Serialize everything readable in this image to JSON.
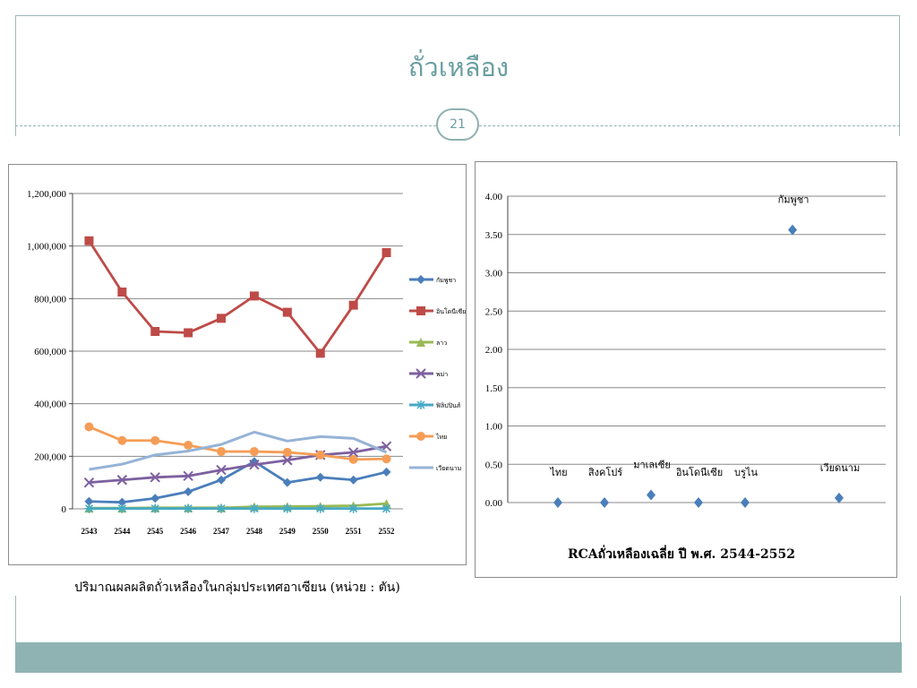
{
  "slide": {
    "title": "ถั่วเหลือง",
    "page_number": "21",
    "accent_color": "#6a9ea0",
    "footer_color": "#8fb3b3"
  },
  "chart_data": [
    {
      "type": "line",
      "caption": "ปริมาณผลผลิตถั่วเหลืองในกลุ่มประเทศอาเซียน (หน่วย : ตัน)",
      "categories": [
        "2543",
        "2544",
        "2545",
        "2546",
        "2547",
        "2548",
        "2549",
        "2550",
        "2551",
        "2552"
      ],
      "ylim": [
        0,
        1200000
      ],
      "yticks": [
        "0",
        "200,000",
        "400,000",
        "600,000",
        "800,000",
        "1,000,000",
        "1,200,000"
      ],
      "grid": true,
      "legend": "right",
      "series": [
        {
          "name": "กัมพูชา",
          "color": "#4a7ebb",
          "marker": "diamond",
          "values": [
            28000,
            25000,
            40000,
            65000,
            110000,
            180000,
            100000,
            120000,
            110000,
            140000
          ]
        },
        {
          "name": "อินโดนีเซีย",
          "color": "#be4b48",
          "marker": "square",
          "values": [
            1020000,
            825000,
            675000,
            670000,
            725000,
            810000,
            748000,
            592000,
            775000,
            975000
          ]
        },
        {
          "name": "ลาว",
          "color": "#98b954",
          "marker": "triangle",
          "values": [
            3000,
            3000,
            4000,
            4000,
            4000,
            8000,
            9000,
            10000,
            12000,
            20000
          ]
        },
        {
          "name": "พม่า",
          "color": "#7d60a0",
          "marker": "x",
          "values": [
            100000,
            110000,
            120000,
            125000,
            148000,
            168000,
            185000,
            205000,
            215000,
            238000
          ]
        },
        {
          "name": "ฟิลิปปินส์",
          "color": "#46aac5",
          "marker": "star",
          "values": [
            1000,
            1000,
            1000,
            1000,
            1000,
            1000,
            1000,
            1000,
            1000,
            1000
          ]
        },
        {
          "name": "ไทย",
          "color": "#f59d56",
          "marker": "circle",
          "values": [
            312000,
            260000,
            260000,
            242000,
            218000,
            218000,
            215000,
            205000,
            188000,
            190000
          ]
        },
        {
          "name": "เวียดนาม",
          "color": "#95b3d7",
          "marker": "dash",
          "values": [
            150000,
            170000,
            205000,
            220000,
            245000,
            292000,
            258000,
            275000,
            268000,
            215000
          ]
        }
      ]
    },
    {
      "type": "scatter",
      "title": "RCAถั่วเหลืองเฉลี่ย ปี พ.ศ. 2544-2552",
      "ylim": [
        0,
        4
      ],
      "yticks": [
        "0.00",
        "0.50",
        "1.00",
        "1.50",
        "2.00",
        "2.50",
        "3.00",
        "3.50",
        "4.00"
      ],
      "grid": true,
      "color": "#4a7ebb",
      "points": [
        {
          "label": "ไทย",
          "y": 0.0
        },
        {
          "label": "สิงคโปร์",
          "y": 0.0
        },
        {
          "label": "มาเลเซีย",
          "y": 0.1
        },
        {
          "label": "อินโดนีเซีย",
          "y": 0.0
        },
        {
          "label": "บรูไน",
          "y": 0.0
        },
        {
          "label": "กัมพูชา",
          "y": 3.56
        },
        {
          "label": "เวียดนาม",
          "y": 0.06
        }
      ]
    }
  ]
}
